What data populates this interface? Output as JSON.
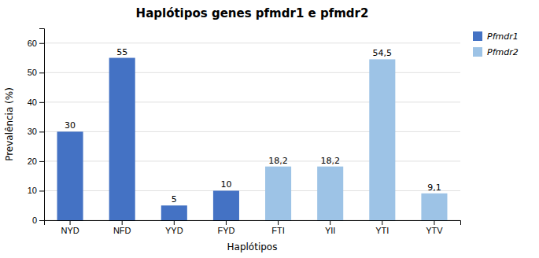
{
  "chart_data": {
    "type": "bar",
    "title": "Haplótipos genes pfmdr1 e pfmdr2",
    "xlabel": "Haplótipos",
    "ylabel": "Prevalência (%)",
    "categories": [
      "NYD",
      "NFD",
      "YYD",
      "FYD",
      "FTI",
      "YII",
      "YTI",
      "YTV"
    ],
    "series": [
      {
        "name": "Pfmdr1",
        "color": "#4472C4",
        "values": [
          30,
          55,
          5,
          10,
          0,
          0,
          0,
          0
        ],
        "value_labels": [
          "30",
          "55",
          "5",
          "10",
          null,
          null,
          null,
          null
        ]
      },
      {
        "name": "Pfmdr2",
        "color": "#9DC3E6",
        "values": [
          0,
          0,
          0,
          0,
          18.2,
          18.2,
          54.5,
          9.1
        ],
        "value_labels": [
          null,
          null,
          null,
          null,
          "18,2",
          "18,2",
          "54,5",
          "9,1"
        ]
      }
    ],
    "ylim": [
      0,
      65
    ],
    "yticks": [
      0,
      10,
      20,
      30,
      40,
      50,
      60
    ],
    "grid": true,
    "legend": "top-right",
    "data_labels": true
  }
}
